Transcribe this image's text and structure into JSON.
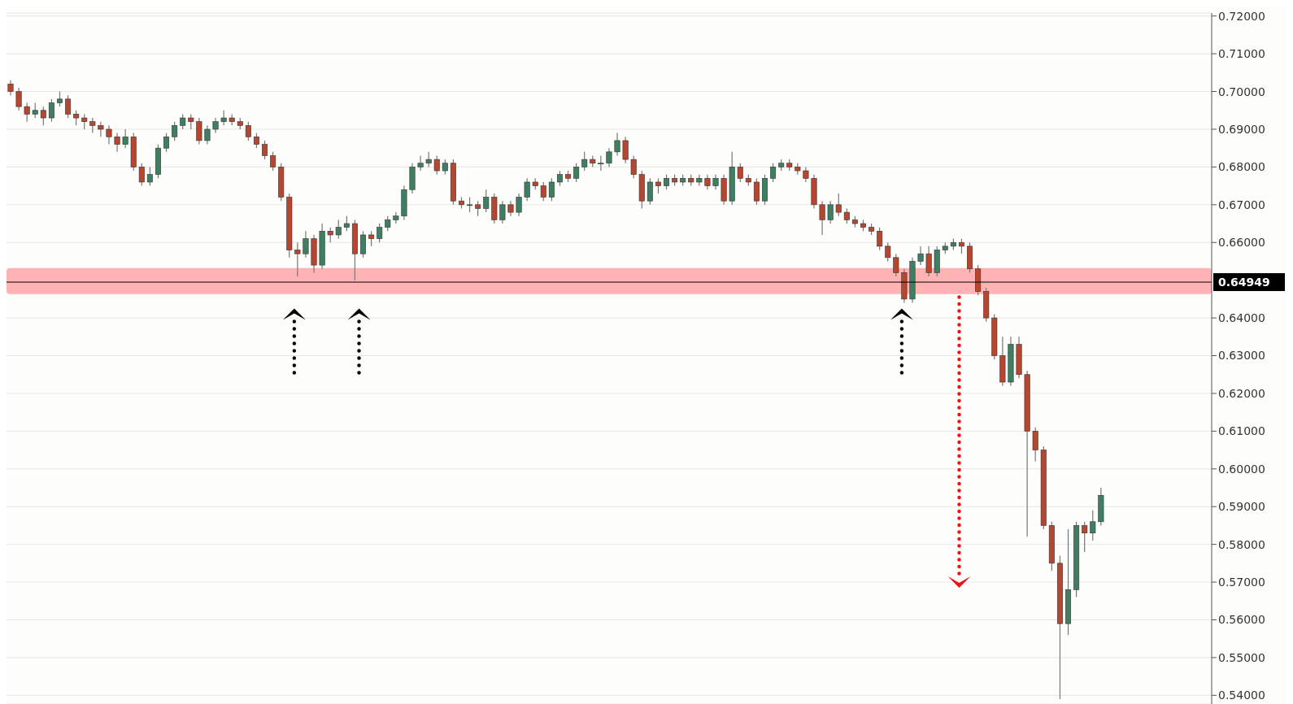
{
  "chart_data": {
    "type": "candlestick",
    "categories": [
      null,
      null,
      null,
      null,
      null,
      null,
      null,
      null,
      null,
      null,
      null,
      null,
      null,
      null,
      null,
      null,
      null,
      null,
      null,
      null,
      null,
      null,
      null,
      null,
      null,
      null,
      null,
      null,
      null,
      null,
      null,
      null,
      null,
      null,
      null,
      null,
      null,
      null,
      null,
      null,
      null,
      null,
      null,
      null,
      null,
      null,
      null,
      null,
      null,
      null,
      null,
      null,
      null,
      null,
      null,
      null,
      null,
      null,
      null,
      null,
      null,
      null,
      null,
      null,
      null,
      null,
      null,
      null,
      null,
      null,
      null,
      null,
      null,
      null,
      null,
      null,
      null,
      null,
      null,
      null,
      null,
      null,
      null,
      null,
      null,
      null,
      null,
      null,
      null,
      null,
      null,
      null,
      null,
      null,
      null,
      null,
      null,
      null,
      null,
      null,
      null,
      null,
      null,
      null,
      null,
      null,
      null,
      null,
      null,
      null,
      null,
      null,
      null,
      null,
      null,
      null,
      null,
      null,
      null,
      null,
      null,
      null,
      null,
      null,
      null,
      null,
      null,
      null,
      null,
      null,
      null,
      null,
      null,
      null,
      null,
      null,
      null,
      null,
      null,
      null,
      null,
      null,
      null,
      null,
      null,
      null,
      null
    ],
    "ohlc": [
      [
        0.702,
        0.703,
        0.699,
        0.7
      ],
      [
        0.7,
        0.701,
        0.695,
        0.696
      ],
      [
        0.696,
        0.697,
        0.692,
        0.694
      ],
      [
        0.694,
        0.697,
        0.693,
        0.695
      ],
      [
        0.695,
        0.696,
        0.691,
        0.693
      ],
      [
        0.693,
        0.698,
        0.692,
        0.697
      ],
      [
        0.697,
        0.7,
        0.696,
        0.698
      ],
      [
        0.698,
        0.699,
        0.693,
        0.694
      ],
      [
        0.694,
        0.695,
        0.691,
        0.693
      ],
      [
        0.693,
        0.694,
        0.69,
        0.692
      ],
      [
        0.692,
        0.693,
        0.689,
        0.691
      ],
      [
        0.691,
        0.692,
        0.688,
        0.69
      ],
      [
        0.69,
        0.691,
        0.686,
        0.688
      ],
      [
        0.688,
        0.689,
        0.684,
        0.686
      ],
      [
        0.686,
        0.69,
        0.685,
        0.688
      ],
      [
        0.688,
        0.689,
        0.679,
        0.68
      ],
      [
        0.68,
        0.681,
        0.675,
        0.676
      ],
      [
        0.676,
        0.68,
        0.675,
        0.678
      ],
      [
        0.678,
        0.686,
        0.677,
        0.685
      ],
      [
        0.685,
        0.689,
        0.684,
        0.688
      ],
      [
        0.688,
        0.692,
        0.687,
        0.691
      ],
      [
        0.691,
        0.694,
        0.69,
        0.693
      ],
      [
        0.693,
        0.694,
        0.69,
        0.692
      ],
      [
        0.692,
        0.693,
        0.686,
        0.687
      ],
      [
        0.687,
        0.691,
        0.686,
        0.69
      ],
      [
        0.69,
        0.693,
        0.689,
        0.692
      ],
      [
        0.692,
        0.695,
        0.691,
        0.693
      ],
      [
        0.693,
        0.694,
        0.691,
        0.692
      ],
      [
        0.692,
        0.693,
        0.69,
        0.691
      ],
      [
        0.691,
        0.692,
        0.687,
        0.688
      ],
      [
        0.688,
        0.689,
        0.685,
        0.686
      ],
      [
        0.686,
        0.687,
        0.682,
        0.683
      ],
      [
        0.683,
        0.684,
        0.679,
        0.68
      ],
      [
        0.68,
        0.681,
        0.671,
        0.672
      ],
      [
        0.672,
        0.673,
        0.656,
        0.658
      ],
      [
        0.658,
        0.66,
        0.651,
        0.657
      ],
      [
        0.657,
        0.663,
        0.656,
        0.661
      ],
      [
        0.661,
        0.662,
        0.652,
        0.654
      ],
      [
        0.654,
        0.665,
        0.653,
        0.663
      ],
      [
        0.663,
        0.664,
        0.66,
        0.662
      ],
      [
        0.662,
        0.666,
        0.661,
        0.664
      ],
      [
        0.664,
        0.667,
        0.663,
        0.665
      ],
      [
        0.665,
        0.666,
        0.65,
        0.657
      ],
      [
        0.657,
        0.663,
        0.656,
        0.662
      ],
      [
        0.662,
        0.663,
        0.659,
        0.661
      ],
      [
        0.661,
        0.665,
        0.66,
        0.664
      ],
      [
        0.664,
        0.667,
        0.663,
        0.666
      ],
      [
        0.666,
        0.668,
        0.665,
        0.667
      ],
      [
        0.667,
        0.675,
        0.666,
        0.674
      ],
      [
        0.674,
        0.681,
        0.673,
        0.68
      ],
      [
        0.68,
        0.683,
        0.679,
        0.681
      ],
      [
        0.681,
        0.684,
        0.68,
        0.682
      ],
      [
        0.682,
        0.683,
        0.678,
        0.679
      ],
      [
        0.679,
        0.682,
        0.678,
        0.681
      ],
      [
        0.681,
        0.682,
        0.67,
        0.671
      ],
      [
        0.671,
        0.672,
        0.669,
        0.67
      ],
      [
        0.67,
        0.672,
        0.668,
        0.67
      ],
      [
        0.67,
        0.671,
        0.667,
        0.669
      ],
      [
        0.669,
        0.674,
        0.668,
        0.672
      ],
      [
        0.672,
        0.673,
        0.665,
        0.666
      ],
      [
        0.666,
        0.671,
        0.665,
        0.67
      ],
      [
        0.67,
        0.671,
        0.667,
        0.668
      ],
      [
        0.668,
        0.673,
        0.667,
        0.672
      ],
      [
        0.672,
        0.677,
        0.671,
        0.676
      ],
      [
        0.676,
        0.677,
        0.674,
        0.675
      ],
      [
        0.675,
        0.676,
        0.671,
        0.672
      ],
      [
        0.672,
        0.677,
        0.671,
        0.676
      ],
      [
        0.676,
        0.679,
        0.675,
        0.678
      ],
      [
        0.678,
        0.679,
        0.676,
        0.677
      ],
      [
        0.677,
        0.681,
        0.676,
        0.68
      ],
      [
        0.68,
        0.684,
        0.679,
        0.682
      ],
      [
        0.682,
        0.683,
        0.68,
        0.681
      ],
      [
        0.681,
        0.683,
        0.679,
        0.681
      ],
      [
        0.681,
        0.685,
        0.68,
        0.684
      ],
      [
        0.684,
        0.689,
        0.683,
        0.687
      ],
      [
        0.687,
        0.688,
        0.681,
        0.682
      ],
      [
        0.682,
        0.683,
        0.677,
        0.678
      ],
      [
        0.678,
        0.679,
        0.669,
        0.671
      ],
      [
        0.671,
        0.677,
        0.67,
        0.676
      ],
      [
        0.676,
        0.677,
        0.673,
        0.675
      ],
      [
        0.675,
        0.678,
        0.674,
        0.677
      ],
      [
        0.677,
        0.678,
        0.675,
        0.676
      ],
      [
        0.676,
        0.678,
        0.675,
        0.677
      ],
      [
        0.677,
        0.678,
        0.675,
        0.676
      ],
      [
        0.676,
        0.678,
        0.675,
        0.677
      ],
      [
        0.677,
        0.678,
        0.674,
        0.675
      ],
      [
        0.675,
        0.678,
        0.674,
        0.677
      ],
      [
        0.677,
        0.678,
        0.67,
        0.671
      ],
      [
        0.671,
        0.684,
        0.67,
        0.68
      ],
      [
        0.68,
        0.681,
        0.676,
        0.677
      ],
      [
        0.677,
        0.678,
        0.675,
        0.676
      ],
      [
        0.676,
        0.677,
        0.67,
        0.671
      ],
      [
        0.671,
        0.678,
        0.67,
        0.677
      ],
      [
        0.677,
        0.681,
        0.676,
        0.68
      ],
      [
        0.68,
        0.682,
        0.679,
        0.681
      ],
      [
        0.681,
        0.682,
        0.679,
        0.68
      ],
      [
        0.68,
        0.681,
        0.678,
        0.679
      ],
      [
        0.679,
        0.68,
        0.676,
        0.677
      ],
      [
        0.677,
        0.678,
        0.669,
        0.67
      ],
      [
        0.67,
        0.671,
        0.662,
        0.666
      ],
      [
        0.666,
        0.671,
        0.665,
        0.67
      ],
      [
        0.67,
        0.673,
        0.667,
        0.668
      ],
      [
        0.668,
        0.669,
        0.665,
        0.666
      ],
      [
        0.666,
        0.667,
        0.664,
        0.665
      ],
      [
        0.665,
        0.666,
        0.663,
        0.664
      ],
      [
        0.664,
        0.665,
        0.662,
        0.663
      ],
      [
        0.663,
        0.664,
        0.658,
        0.659
      ],
      [
        0.659,
        0.66,
        0.655,
        0.656
      ],
      [
        0.656,
        0.657,
        0.651,
        0.652
      ],
      [
        0.652,
        0.653,
        0.644,
        0.645
      ],
      [
        0.645,
        0.656,
        0.644,
        0.655
      ],
      [
        0.655,
        0.659,
        0.654,
        0.657
      ],
      [
        0.657,
        0.659,
        0.651,
        0.652
      ],
      [
        0.652,
        0.659,
        0.651,
        0.658
      ],
      [
        0.658,
        0.66,
        0.657,
        0.659
      ],
      [
        0.659,
        0.661,
        0.658,
        0.66
      ],
      [
        0.66,
        0.661,
        0.657,
        0.659
      ],
      [
        0.659,
        0.66,
        0.652,
        0.653
      ],
      [
        0.653,
        0.654,
        0.646,
        0.647
      ],
      [
        0.647,
        0.648,
        0.639,
        0.64
      ],
      [
        0.64,
        0.641,
        0.629,
        0.63
      ],
      [
        0.63,
        0.635,
        0.622,
        0.623
      ],
      [
        0.623,
        0.635,
        0.622,
        0.633
      ],
      [
        0.633,
        0.635,
        0.624,
        0.625
      ],
      [
        0.625,
        0.626,
        0.582,
        0.61
      ],
      [
        0.61,
        0.611,
        0.602,
        0.605
      ],
      [
        0.605,
        0.606,
        0.584,
        0.585
      ],
      [
        0.585,
        0.586,
        0.573,
        0.575
      ],
      [
        0.575,
        0.577,
        0.539,
        0.559
      ],
      [
        0.559,
        0.584,
        0.556,
        0.568
      ],
      [
        0.568,
        0.586,
        0.566,
        0.585
      ],
      [
        0.585,
        0.586,
        0.578,
        0.583
      ],
      [
        0.583,
        0.589,
        0.581,
        0.586
      ],
      [
        0.586,
        0.595,
        0.585,
        0.593
      ],
      null,
      null,
      null,
      null,
      null,
      null,
      null,
      null,
      null,
      null,
      null,
      null,
      null
    ],
    "colors": [
      "#b8452d",
      "#b8452d",
      "#b8452d",
      "#3f7f61",
      "#b8452d",
      "#3f7f61",
      "#3f7f61",
      "#b8452d",
      "#b8452d",
      "#b8452d",
      "#b8452d",
      "#b8452d",
      "#b8452d",
      "#b8452d",
      "#3f7f61",
      "#b8452d",
      "#b8452d",
      "#3f7f61",
      "#3f7f61",
      "#3f7f61",
      "#3f7f61",
      "#3f7f61",
      "#b8452d",
      "#b8452d",
      "#3f7f61",
      "#3f7f61",
      "#3f7f61",
      "#b8452d",
      "#b8452d",
      "#b8452d",
      "#b8452d",
      "#b8452d",
      "#b8452d",
      "#b8452d",
      "#b8452d",
      "#b8452d",
      "#3f7f61",
      "#b8452d",
      "#3f7f61",
      "#b8452d",
      "#3f7f61",
      "#3f7f61",
      "#b8452d",
      "#3f7f61",
      "#b8452d",
      "#3f7f61",
      "#3f7f61",
      "#3f7f61",
      "#3f7f61",
      "#3f7f61",
      "#3f7f61",
      "#3f7f61",
      "#b8452d",
      "#3f7f61",
      "#b8452d",
      "#b8452d",
      "#3f7f61",
      "#b8452d",
      "#3f7f61",
      "#b8452d",
      "#3f7f61",
      "#b8452d",
      "#3f7f61",
      "#3f7f61",
      "#b8452d",
      "#b8452d",
      "#3f7f61",
      "#3f7f61",
      "#b8452d",
      "#3f7f61",
      "#3f7f61",
      "#b8452d",
      "#3f7f61",
      "#3f7f61",
      "#3f7f61",
      "#b8452d",
      "#b8452d",
      "#b8452d",
      "#3f7f61",
      "#b8452d",
      "#3f7f61",
      "#b8452d",
      "#3f7f61",
      "#b8452d",
      "#3f7f61",
      "#b8452d",
      "#3f7f61",
      "#b8452d",
      "#3f7f61",
      "#b8452d",
      "#b8452d",
      "#b8452d",
      "#3f7f61",
      "#3f7f61",
      "#3f7f61",
      "#b8452d",
      "#b8452d",
      "#b8452d",
      "#b8452d",
      "#b8452d",
      "#3f7f61",
      "#b8452d",
      "#b8452d",
      "#b8452d",
      "#b8452d",
      "#b8452d",
      "#b8452d",
      "#b8452d",
      "#b8452d",
      "#b8452d",
      "#3f7f61",
      "#3f7f61",
      "#b8452d",
      "#3f7f61",
      "#3f7f61",
      "#3f7f61",
      "#b8452d",
      "#b8452d",
      "#b8452d",
      "#b8452d",
      "#b8452d",
      "#b8452d",
      "#3f7f61",
      "#b8452d",
      "#b8452d",
      "#b8452d",
      "#b8452d",
      "#b8452d",
      "#b8452d",
      "#3f7f61",
      "#3f7f61",
      "#b8452d",
      "#3f7f61",
      "#3f7f61",
      null,
      null,
      null,
      null,
      null,
      null,
      null,
      null,
      null,
      null,
      null,
      null,
      null
    ],
    "ylim": [
      0.5377,
      0.7208
    ],
    "yticks": [
      {
        "value": 0.54,
        "label": "0.54000"
      },
      {
        "value": 0.55,
        "label": "0.55000"
      },
      {
        "value": 0.56,
        "label": "0.56000"
      },
      {
        "value": 0.57,
        "label": "0.57000"
      },
      {
        "value": 0.58,
        "label": "0.58000"
      },
      {
        "value": 0.59,
        "label": "0.59000"
      },
      {
        "value": 0.6,
        "label": "0.60000"
      },
      {
        "value": 0.61,
        "label": "0.61000"
      },
      {
        "value": 0.62,
        "label": "0.62000"
      },
      {
        "value": 0.63,
        "label": "0.63000"
      },
      {
        "value": 0.64,
        "label": "0.64000"
      },
      {
        "value": 0.66,
        "label": "0.66000"
      },
      {
        "value": 0.67,
        "label": "0.67000"
      },
      {
        "value": 0.68,
        "label": "0.68000"
      },
      {
        "value": 0.69,
        "label": "0.69000"
      },
      {
        "value": 0.7,
        "label": "0.70000"
      },
      {
        "value": 0.71,
        "label": "0.71000"
      },
      {
        "value": 0.72,
        "label": "0.72000"
      }
    ],
    "ref_lines": [
      {
        "axis": "y",
        "value": 0.64949,
        "label": "0.64949",
        "color": "#000000"
      }
    ],
    "bands": [
      {
        "axis": "y",
        "from": 0.6463,
        "to": 0.6532,
        "color": "#ffb3b3"
      }
    ],
    "grid": "y",
    "tick_labels": "y"
  }
}
